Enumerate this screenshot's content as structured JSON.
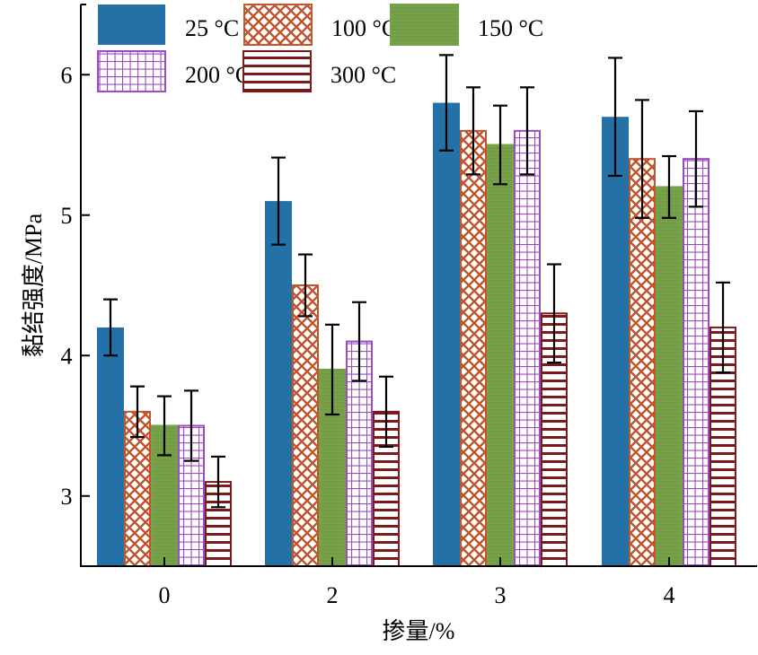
{
  "chart_data": {
    "type": "bar",
    "title": "",
    "xlabel": "掺量/%",
    "ylabel": "黏结强度/MPa",
    "ylim": [
      2.5,
      6.5
    ],
    "yticks": [
      3,
      4,
      5,
      6
    ],
    "categories": [
      "0",
      "2",
      "3",
      "4"
    ],
    "grid": false,
    "legend_position": "top",
    "series": [
      {
        "name": "25 °C",
        "color": "#2471a8",
        "pattern": "solid",
        "values": [
          4.2,
          5.1,
          5.8,
          5.7
        ],
        "errors": [
          0.2,
          0.31,
          0.34,
          0.42
        ]
      },
      {
        "name": "100 °C",
        "color": "#c0552e",
        "pattern": "crosshatch",
        "values": [
          3.6,
          4.5,
          5.6,
          5.4
        ],
        "errors": [
          0.18,
          0.22,
          0.31,
          0.42
        ]
      },
      {
        "name": "150 °C",
        "color": "#77a24a",
        "pattern": "solid-green",
        "values": [
          3.5,
          3.9,
          5.5,
          5.2
        ],
        "errors": [
          0.21,
          0.32,
          0.28,
          0.22
        ]
      },
      {
        "name": "200 °C",
        "color": "#9b4dbd",
        "pattern": "grid",
        "values": [
          3.5,
          4.1,
          5.6,
          5.4
        ],
        "errors": [
          0.25,
          0.28,
          0.31,
          0.34
        ]
      },
      {
        "name": "300 °C",
        "color": "#7a1a1a",
        "pattern": "horizontal",
        "values": [
          3.1,
          3.6,
          4.3,
          4.2
        ],
        "errors": [
          0.18,
          0.25,
          0.35,
          0.32
        ]
      }
    ]
  }
}
